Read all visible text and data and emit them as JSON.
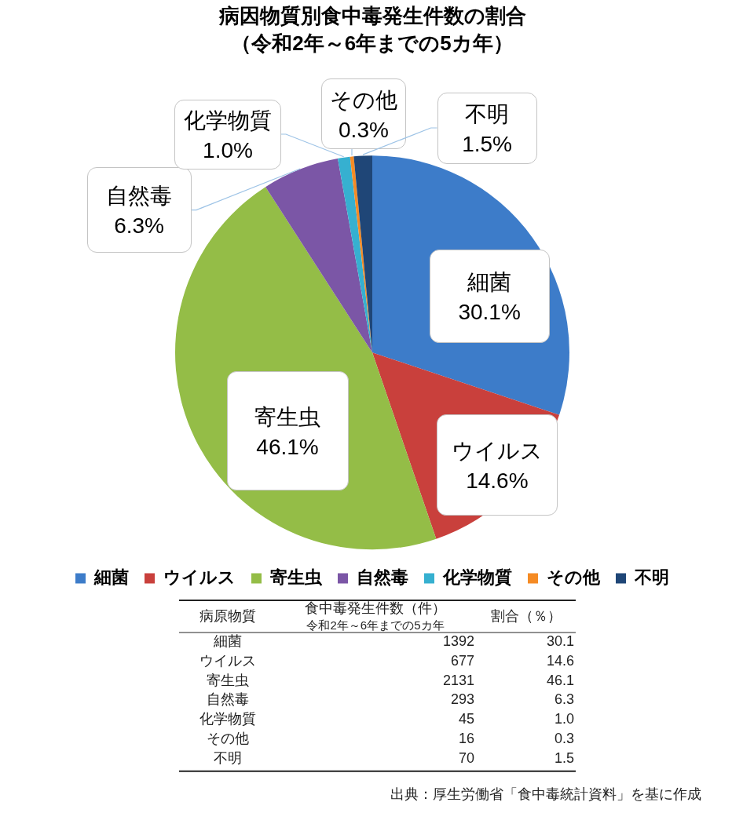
{
  "chart_data": {
    "type": "pie",
    "title": "病因物質別食中毒発生件数の割合",
    "subtitle": "（令和2年～6年までの5カ年）",
    "categories": [
      "細菌",
      "ウイルス",
      "寄生虫",
      "自然毒",
      "化学物質",
      "その他",
      "不明"
    ],
    "values": [
      30.1,
      14.6,
      46.1,
      6.3,
      1.0,
      0.3,
      1.5
    ],
    "colors": [
      "#3d7cc9",
      "#c9403c",
      "#94bd47",
      "#7b56a6",
      "#36b0d0",
      "#f58b24",
      "#1f4677"
    ],
    "value_labels": [
      "30.1%",
      "14.6%",
      "46.1%",
      "6.3%",
      "1.0%",
      "0.3%",
      "1.5%"
    ],
    "legend": "bottom",
    "annotations": [
      "病原物質",
      "食中毒発生件数（件）",
      "令和2年～6年までの5カ年",
      "割合（％）",
      "1392",
      "677",
      "2131",
      "293",
      "45",
      "16",
      "70",
      "30.1",
      "14.6",
      "46.1",
      "6.3",
      "1.0",
      "0.3",
      "1.5",
      "出典：厚生労働省「食中毒統計資料」を基に作成"
    ]
  }
}
